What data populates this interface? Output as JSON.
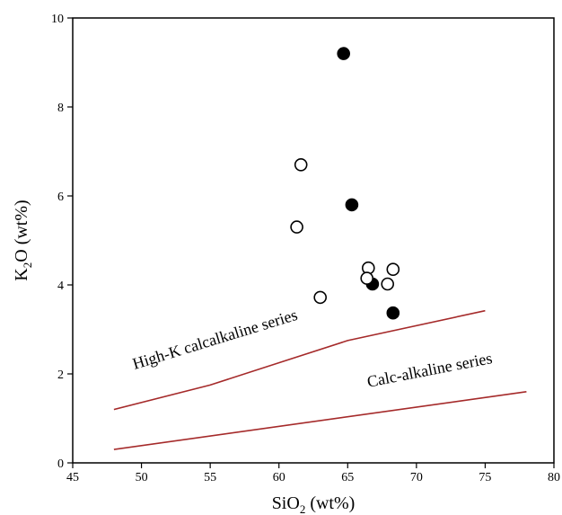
{
  "chart_data": {
    "type": "scatter",
    "title": "",
    "xlabel": {
      "main": "SiO",
      "sub": "2",
      "rest": " (wt%)"
    },
    "ylabel": {
      "main": "K",
      "sub": "2",
      "rest": "O (wt%)"
    },
    "xlim": [
      45,
      80
    ],
    "ylim": [
      0,
      10
    ],
    "xticks": [
      "45",
      "50",
      "55",
      "60",
      "65",
      "70",
      "75",
      "80"
    ],
    "yticks": [
      "0",
      "2",
      "4",
      "6",
      "8",
      "10"
    ],
    "grid": false,
    "series": [
      {
        "marker": "filled-circle",
        "color": "#000000",
        "points": [
          [
            64.7,
            9.2
          ],
          [
            65.3,
            5.8
          ],
          [
            66.8,
            4.02
          ],
          [
            68.3,
            3.37
          ]
        ]
      },
      {
        "marker": "open-circle",
        "color": "#000000",
        "points": [
          [
            61.6,
            6.7
          ],
          [
            61.3,
            5.3
          ],
          [
            66.5,
            4.38
          ],
          [
            68.3,
            4.35
          ],
          [
            66.4,
            4.15
          ],
          [
            67.9,
            4.02
          ],
          [
            63.0,
            3.72
          ]
        ]
      }
    ],
    "boundary_lines": [
      {
        "color": "#a52a2a",
        "points": [
          [
            48,
            1.2
          ],
          [
            55,
            1.75
          ],
          [
            60,
            2.25
          ],
          [
            65,
            2.75
          ],
          [
            75,
            3.42
          ]
        ]
      },
      {
        "color": "#a52a2a",
        "points": [
          [
            48,
            0.3
          ],
          [
            78,
            1.6
          ]
        ]
      }
    ],
    "annotations": [
      {
        "text": "High-K calcalkaline series",
        "x": 49.5,
        "y": 2.1,
        "angle": 17
      },
      {
        "text": "Calc-alkaline series",
        "x": 66.5,
        "y": 1.7,
        "angle": 11
      }
    ]
  }
}
